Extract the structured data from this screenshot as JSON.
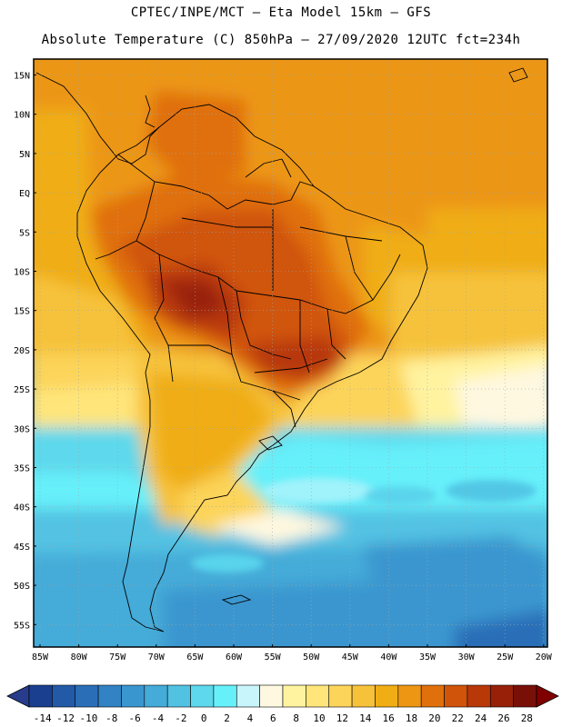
{
  "header": {
    "line1": "CPTEC/INPE/MCT —  Eta Model 15km — GFS",
    "line2": "Absolute Temperature (C) 850hPa — 27/09/2020 12UTC fct=234h"
  },
  "axes": {
    "lat_labels": [
      "15N",
      "10N",
      "5N",
      "EQ",
      "5S",
      "10S",
      "15S",
      "20S",
      "25S",
      "30S",
      "35S",
      "40S",
      "45S",
      "50S",
      "55S"
    ],
    "lon_labels": [
      "85W",
      "80W",
      "75W",
      "70W",
      "65W",
      "60W",
      "55W",
      "50W",
      "45W",
      "40W",
      "35W",
      "30W",
      "25W",
      "20W"
    ]
  },
  "colorbar": {
    "labels": [
      "-14",
      "-12",
      "-10",
      "-8",
      "-6",
      "-4",
      "-2",
      "0",
      "2",
      "4",
      "6",
      "8",
      "10",
      "12",
      "14",
      "16",
      "18",
      "20",
      "22",
      "24",
      "26",
      "28"
    ],
    "colors": [
      "#1a3f8f",
      "#235aa8",
      "#2a6eb8",
      "#3282c4",
      "#3a96cf",
      "#45abd8",
      "#52c2e3",
      "#5dd8ec",
      "#66f0fa",
      "#c8f4fc",
      "#fff8e0",
      "#fff3a0",
      "#ffe57a",
      "#fcd45a",
      "#f6c23a",
      "#f0ad14",
      "#ec9614",
      "#e0700c",
      "#d0540a",
      "#b83808",
      "#982008",
      "#781008"
    ],
    "under_color": "#283c8c",
    "over_color": "#800000"
  },
  "map": {
    "region": "South America",
    "grid": "dotted"
  }
}
